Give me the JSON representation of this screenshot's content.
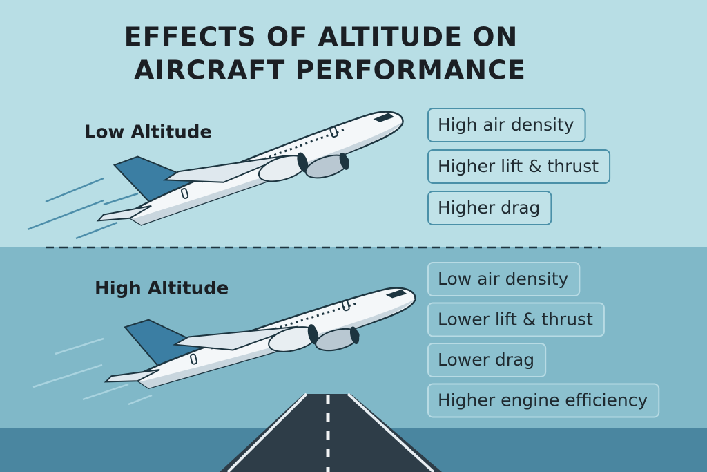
{
  "title": {
    "lines": [
      "EFFECTS OF ALTITUDE ON",
      "AIRCRAFT PERFORMANCE"
    ]
  },
  "sections": [
    {
      "label": "Low Altitude",
      "items": [
        "High air density",
        "Higher lift & thrust",
        "Higher drag"
      ]
    },
    {
      "label": "High Altitude",
      "items": [
        "Low air density",
        "Lower lift & thrust",
        "Lower drag",
        "Higher engine efficiency"
      ]
    }
  ]
}
